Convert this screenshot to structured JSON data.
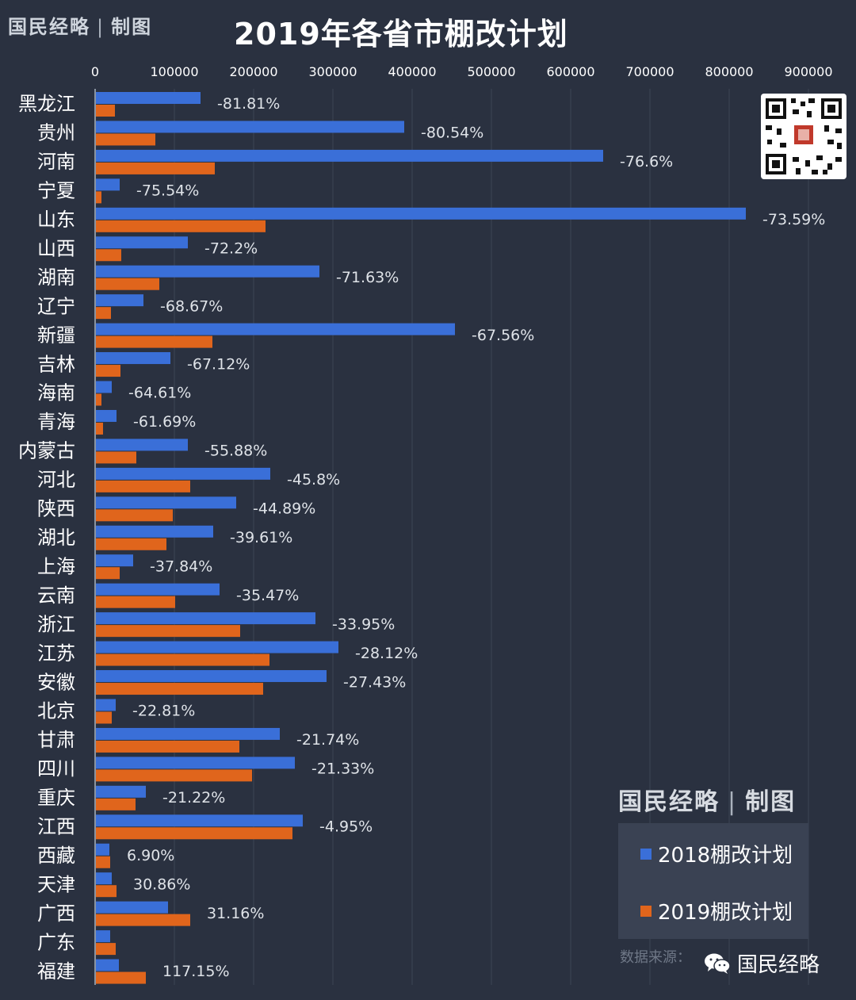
{
  "brand": {
    "name": "国民经略",
    "separator": "|",
    "suffix": "制图"
  },
  "title": "2019年各省市棚改计划",
  "colors": {
    "background": "#2a3140",
    "series_2018": "#3a6fd8",
    "series_2019": "#e0651c",
    "grid": "#3c4555",
    "text": "#ffffff",
    "label": "#dfe3e8"
  },
  "source_label": "数据来源：",
  "wechat": {
    "icon": "wechat-icon",
    "label": "国民经略"
  },
  "qr_icon": "qr-code-icon",
  "chart_data": {
    "type": "bar",
    "orientation": "horizontal",
    "title": "2019年各省市棚改计划",
    "xlim": [
      0,
      900000
    ],
    "x_ticks": [
      "0",
      "100000",
      "200000",
      "300000",
      "400000",
      "500000",
      "600000",
      "700000",
      "800000",
      "900000"
    ],
    "x_tick_values": [
      0,
      100000,
      200000,
      300000,
      400000,
      500000,
      600000,
      700000,
      800000,
      900000
    ],
    "x_axis_position": "top",
    "grid": true,
    "legend_position": "bottom-right",
    "categories": [
      "黑龙江",
      "贵州",
      "河南",
      "宁夏",
      "山东",
      "山西",
      "湖南",
      "辽宁",
      "新疆",
      "吉林",
      "海南",
      "青海",
      "内蒙古",
      "河北",
      "陕西",
      "湖北",
      "上海",
      "云南",
      "浙江",
      "江苏",
      "安徽",
      "北京",
      "甘肃",
      "四川",
      "重庆",
      "江西",
      "西藏",
      "天津",
      "广西",
      "广东",
      "福建"
    ],
    "series": [
      {
        "name": "2018棚改计划",
        "color": "#3a6fd8",
        "values": [
          132000,
          389000,
          640000,
          30000,
          820000,
          116000,
          282000,
          60000,
          453000,
          94000,
          20000,
          26000,
          116000,
          220000,
          177000,
          148000,
          47000,
          156000,
          277000,
          306000,
          291000,
          25000,
          232000,
          251000,
          63000,
          261000,
          17000,
          20000,
          91000,
          18000,
          29000
        ]
      },
      {
        "name": "2019棚改计划",
        "color": "#e0651c",
        "values": [
          24000,
          75000,
          150000,
          7000,
          214000,
          32000,
          80000,
          19000,
          147000,
          31000,
          7000,
          9000,
          51000,
          119000,
          97000,
          89000,
          30000,
          100000,
          182000,
          219000,
          211000,
          20000,
          181000,
          197000,
          50000,
          248000,
          18000,
          26000,
          119000,
          25000,
          63000
        ]
      }
    ],
    "data_labels": [
      "-81.81%",
      "-80.54%",
      "-76.6%",
      "-75.54%",
      "-73.59%",
      "-72.2%",
      "-71.63%",
      "-68.67%",
      "-67.56%",
      "-67.12%",
      "-64.61%",
      "-61.69%",
      "-55.88%",
      "-45.8%",
      "-44.89%",
      "-39.61%",
      "-37.84%",
      "-35.47%",
      "-33.95%",
      "-28.12%",
      "-27.43%",
      "-22.81%",
      "-21.74%",
      "-21.33%",
      "-21.22%",
      "-4.95%",
      "6.90%",
      "30.86%",
      "31.16%",
      "",
      "117.15%"
    ]
  }
}
